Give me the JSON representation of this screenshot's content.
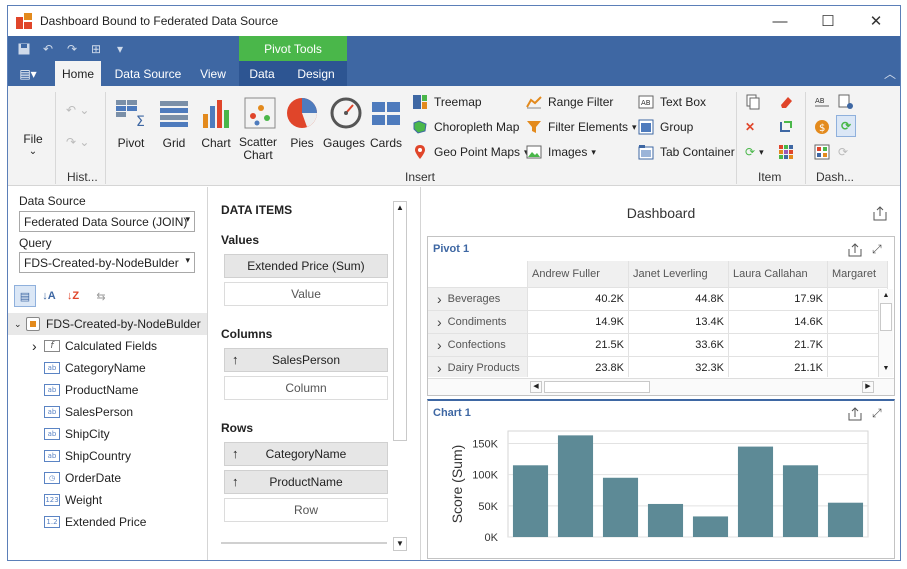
{
  "window": {
    "title": "Dashboard Bound to Federated Data Source"
  },
  "ribbon": {
    "context_group": "Pivot Tools",
    "tabs": [
      "Home",
      "Data Source",
      "View",
      "Data",
      "Design"
    ],
    "active_tab": "Home",
    "file_label": "File",
    "groups": {
      "history": "Hist...",
      "insert": "Insert",
      "item": "Item",
      "dashboard": "Dash..."
    },
    "big_buttons": [
      {
        "label": "Pivot",
        "icon": "pivot-icon"
      },
      {
        "label": "Grid",
        "icon": "grid-icon"
      },
      {
        "label": "Chart",
        "icon": "chart-icon"
      },
      {
        "label": "Scatter Chart",
        "icon": "scatter-chart-icon"
      },
      {
        "label": "Pies",
        "icon": "pies-icon"
      },
      {
        "label": "Gauges",
        "icon": "gauges-icon"
      },
      {
        "label": "Cards",
        "icon": "cards-icon"
      }
    ],
    "small_buttons": {
      "treemap": "Treemap",
      "choropleth_map": "Choropleth Map",
      "geo_point_maps": "Geo Point Maps",
      "range_filter": "Range Filter",
      "filter_elements": "Filter Elements",
      "images": "Images",
      "text_box": "Text Box",
      "group": "Group",
      "tab_container": "Tab Container"
    }
  },
  "left_panel": {
    "data_source_label": "Data Source",
    "data_source_value": "Federated Data Source (JOIN)",
    "query_label": "Query",
    "query_value": "FDS-Created-by-NodeBulder",
    "tree_root": "FDS-Created-by-NodeBulder",
    "fields": [
      {
        "name": "Calculated Fields",
        "icon": "function-icon",
        "glyph": "f"
      },
      {
        "name": "CategoryName",
        "icon": "string-field-icon",
        "glyph": "ab"
      },
      {
        "name": "ProductName",
        "icon": "string-field-icon",
        "glyph": "ab"
      },
      {
        "name": "SalesPerson",
        "icon": "string-field-icon",
        "glyph": "ab"
      },
      {
        "name": "ShipCity",
        "icon": "string-field-icon",
        "glyph": "ab"
      },
      {
        "name": "ShipCountry",
        "icon": "string-field-icon",
        "glyph": "ab"
      },
      {
        "name": "OrderDate",
        "icon": "date-field-icon",
        "glyph": "◷"
      },
      {
        "name": "Weight",
        "icon": "integer-field-icon",
        "glyph": "123"
      },
      {
        "name": "Extended Price",
        "icon": "decimal-field-icon",
        "glyph": "1.2"
      }
    ]
  },
  "data_items": {
    "header": "DATA ITEMS",
    "values_label": "Values",
    "values": [
      "Extended Price (Sum)"
    ],
    "values_placeholder": "Value",
    "columns_label": "Columns",
    "columns": [
      "SalesPerson"
    ],
    "columns_placeholder": "Column",
    "rows_label": "Rows",
    "rows": [
      "CategoryName",
      "ProductName"
    ],
    "rows_placeholder": "Row"
  },
  "dashboard": {
    "title": "Dashboard",
    "pivot": {
      "title": "Pivot 1",
      "columns": [
        "Andrew Fuller",
        "Janet Leverling",
        "Laura Callahan",
        "Margaret"
      ],
      "rows": [
        {
          "label": "Beverages",
          "values": [
            "40.2K",
            "44.8K",
            "17.9K"
          ]
        },
        {
          "label": "Condiments",
          "values": [
            "14.9K",
            "13.4K",
            "14.6K"
          ]
        },
        {
          "label": "Confections",
          "values": [
            "21.5K",
            "33.6K",
            "21.7K"
          ]
        },
        {
          "label": "Dairy Products",
          "values": [
            "23.8K",
            "32.3K",
            "21.1K"
          ]
        }
      ]
    },
    "chart": {
      "title": "Chart 1"
    }
  },
  "chart_data": {
    "type": "bar",
    "title": "",
    "xlabel": "",
    "ylabel": "Score (Sum)",
    "ylim": [
      0,
      170000
    ],
    "yticks": [
      "0K",
      "50K",
      "100K",
      "150K"
    ],
    "ytick_values": [
      0,
      50000,
      100000,
      150000
    ],
    "values": [
      115000,
      163000,
      95000,
      53000,
      33000,
      145000,
      115000,
      55000
    ],
    "grid": true,
    "bar_color": "#5d8a96"
  },
  "colors": {
    "accent": "#3e67a3",
    "context": "#4ab74a"
  }
}
